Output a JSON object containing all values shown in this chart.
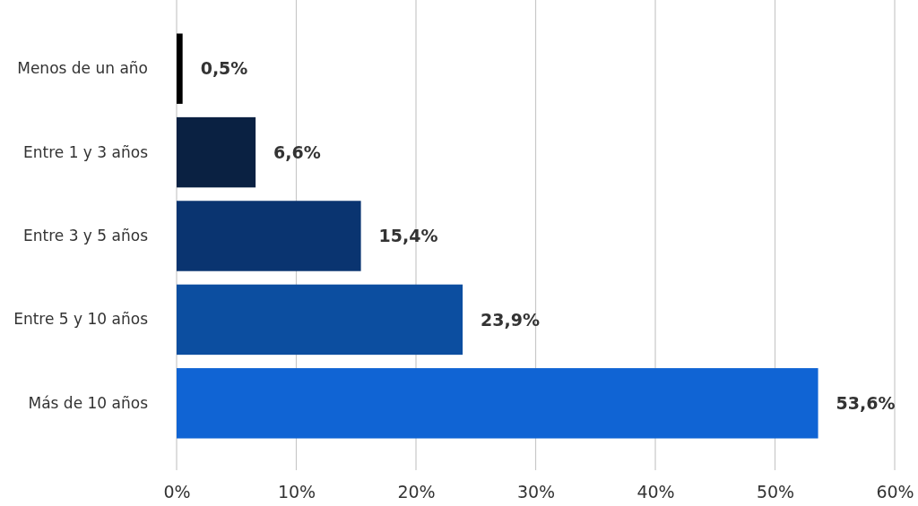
{
  "chart_data": {
    "type": "bar",
    "orientation": "horizontal",
    "categories": [
      "Menos de un año",
      "Entre 1 y 3 años",
      "Entre 3 y 5 años",
      "Entre 5 y 10 años",
      "Más de 10 años"
    ],
    "values": [
      0.5,
      6.6,
      15.4,
      23.9,
      53.6
    ],
    "colors": [
      "#000000",
      "#0a2142",
      "#0a3470",
      "#0c4ea0",
      "#1064d4"
    ],
    "value_labels": [
      "0,5%",
      "6,6%",
      "15,4%",
      "23,9%",
      "53,6%"
    ],
    "xlim": [
      0,
      60
    ],
    "xticks": [
      {
        "value": 0,
        "label": "0%"
      },
      {
        "value": 10,
        "label": "10%"
      },
      {
        "value": 20,
        "label": "20%"
      },
      {
        "value": 30,
        "label": "30%"
      },
      {
        "value": 40,
        "label": "40%"
      },
      {
        "value": 50,
        "label": "50%"
      },
      {
        "value": 60,
        "label": "60%"
      }
    ],
    "grid": "x"
  }
}
